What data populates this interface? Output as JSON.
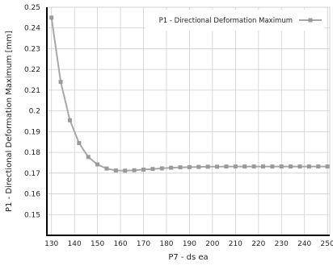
{
  "chart_data": {
    "type": "line",
    "title": "",
    "xlabel": "P7 - ds ea",
    "ylabel": "P1 - Directional Deformation Maximum  [mm]",
    "xlim": [
      128,
      251
    ],
    "ylim": [
      0.14,
      0.25
    ],
    "x_ticks": [
      "130",
      "140",
      "150",
      "160",
      "170",
      "180",
      "190",
      "200",
      "210",
      "220",
      "230",
      "240",
      "250"
    ],
    "y_ticks": [
      "0.15",
      "0.16",
      "0.17",
      "0.18",
      "0.19",
      "0.2",
      "0.21",
      "0.22",
      "0.23",
      "0.24",
      "0.25"
    ],
    "grid": true,
    "legend_position": "top-right",
    "colors": {
      "series": "#a8a8a8",
      "grid": "#cfcfcf",
      "axis": "#000000"
    },
    "series": [
      {
        "name": "P1 - Directional Deformation Maximum",
        "x": [
          130,
          134,
          138,
          142,
          146,
          150,
          154,
          158,
          162,
          166,
          170,
          174,
          178,
          182,
          186,
          190,
          194,
          198,
          202,
          206,
          210,
          214,
          218,
          222,
          226,
          230,
          234,
          238,
          242,
          246,
          250
        ],
        "y": [
          0.245,
          0.214,
          0.1955,
          0.1845,
          0.1778,
          0.1742,
          0.1722,
          0.1713,
          0.1712,
          0.1714,
          0.1717,
          0.172,
          0.1723,
          0.1726,
          0.1728,
          0.1729,
          0.173,
          0.1731,
          0.1731,
          0.1732,
          0.1732,
          0.1732,
          0.1732,
          0.1732,
          0.1732,
          0.1732,
          0.1732,
          0.1732,
          0.1732,
          0.1732,
          0.1732
        ]
      }
    ]
  }
}
